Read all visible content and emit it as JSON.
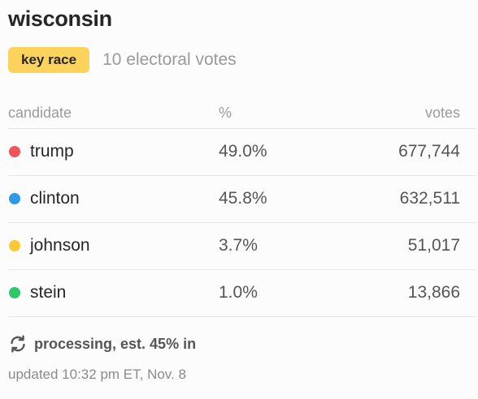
{
  "state": "wisconsin",
  "badge": "key race",
  "electoral_votes": "10 electoral votes",
  "colors": {
    "badge_bg": "#fed35c",
    "trump": "#f2545b",
    "clinton": "#2f9ae8",
    "johnson": "#fdc934",
    "stein": "#2ec866"
  },
  "table": {
    "headers": {
      "candidate": "candidate",
      "pct": "%",
      "votes": "votes"
    },
    "rows": [
      {
        "name": "trump",
        "pct": "49.0%",
        "votes": "677,744",
        "color": "#f2545b"
      },
      {
        "name": "clinton",
        "pct": "45.8%",
        "votes": "632,511",
        "color": "#2f9ae8"
      },
      {
        "name": "johnson",
        "pct": "3.7%",
        "votes": "51,017",
        "color": "#fdc934"
      },
      {
        "name": "stein",
        "pct": "1.0%",
        "votes": "13,866",
        "color": "#2ec866"
      }
    ]
  },
  "status": {
    "icon": "refresh-icon",
    "text": "processing, est. 45% in"
  },
  "updated": "updated 10:32 pm ET, Nov. 8"
}
